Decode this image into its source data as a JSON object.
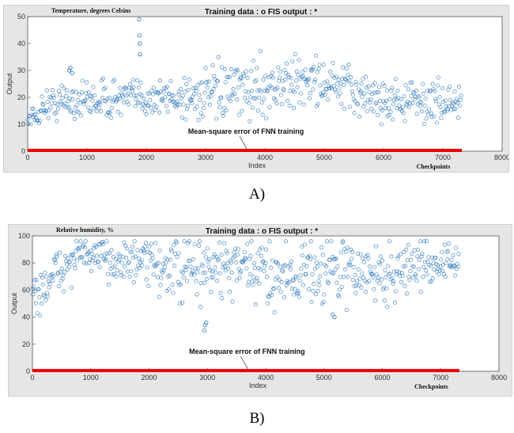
{
  "captions": [
    "A)",
    "B)"
  ],
  "chart_data": [
    {
      "type": "scatter",
      "title": "Training data : o   FIS output : *",
      "subtitle": "Temperature, degrees Celsins",
      "xlabel": "Index",
      "ylabel": "Output",
      "xlim": [
        0,
        8000
      ],
      "ylim": [
        0,
        50
      ],
      "xticks": [
        0,
        1000,
        2000,
        3000,
        4000,
        5000,
        6000,
        7000,
        8000
      ],
      "yticks": [
        0,
        10,
        20,
        30,
        40,
        50
      ],
      "annotation": "Mean-square error of FNN training",
      "corner_label": "Checkpoints",
      "n_points": 7320,
      "series": [
        {
          "name": "Training data",
          "marker": "o",
          "color": "#2a74b8",
          "trend": {
            "x": [
              0,
              80,
              150,
              250,
              400,
              700,
              1000,
              1500,
              2000,
              2500,
              3000,
              3500,
              4000,
              4500,
              4800,
              5000,
              5500,
              6000,
              6500,
              7000,
              7320
            ],
            "y": [
              12,
              13,
              12,
              17,
              17.5,
              19,
              19,
              19.5,
              20,
              20,
              21,
              22,
              24,
              25,
              27,
              25,
              22,
              19,
              18.5,
              18,
              18
            ]
          },
          "spread": [
            2,
            2,
            1.5,
            2.5,
            3,
            4,
            3.5,
            3.5,
            3.5,
            4,
            4.5,
            5,
            5,
            5,
            4,
            4.5,
            4.5,
            4,
            4,
            3.5,
            3.5
          ],
          "outliers": {
            "x": [
              700,
              720,
              750,
              1880,
              1885,
              1890,
              1895
            ],
            "y": [
              30,
              31,
              29,
              49,
              43,
              40,
              36
            ]
          },
          "y_range": [
            10,
            49
          ]
        },
        {
          "name": "Mean-square error of FNN training",
          "marker": "*",
          "color": "#ee0000",
          "x": [
            0,
            7320
          ],
          "y": [
            0.3,
            0.3
          ]
        }
      ]
    },
    {
      "type": "scatter",
      "title": "Training data : o   FIS output : *",
      "subtitle": "Relative humidity, %",
      "xlabel": "Index",
      "ylabel": "Output",
      "xlim": [
        0,
        8000
      ],
      "ylim": [
        0,
        100
      ],
      "xticks": [
        0,
        1000,
        2000,
        3000,
        4000,
        5000,
        6000,
        7000,
        8000
      ],
      "yticks": [
        0,
        20,
        40,
        60,
        80,
        100
      ],
      "annotation": "Mean-square error of FNN training",
      "corner_label": "Checkpoints",
      "n_points": 7320,
      "series": [
        {
          "name": "Training data",
          "marker": "o",
          "color": "#2a74b8",
          "trend": {
            "x": [
              0,
              100,
              300,
              600,
              800,
              1000,
              1500,
              2000,
              2500,
              3000,
              3500,
              4000,
              4500,
              5000,
              5500,
              6000,
              6500,
              7000,
              7320
            ],
            "y": [
              62,
              56,
              68,
              78,
              88,
              84,
              82,
              79,
              74,
              76,
              75,
              73,
              72,
              76,
              74,
              70,
              78,
              80,
              80
            ]
          },
          "spread": [
            8,
            7,
            9,
            8,
            5,
            6,
            8,
            9,
            12,
            12,
            12,
            12,
            12,
            13,
            11,
            12,
            9,
            7,
            6
          ],
          "outliers": {
            "x": [
              2950,
              2960,
              2980,
              5150,
              5180
            ],
            "y": [
              30,
              34,
              36,
              42,
              40
            ]
          },
          "y_range": [
            30,
            96
          ]
        },
        {
          "name": "Mean-square error of FNN training",
          "marker": "*",
          "color": "#ee0000",
          "x": [
            0,
            7320
          ],
          "y": [
            0.5,
            0.5
          ]
        }
      ]
    }
  ]
}
